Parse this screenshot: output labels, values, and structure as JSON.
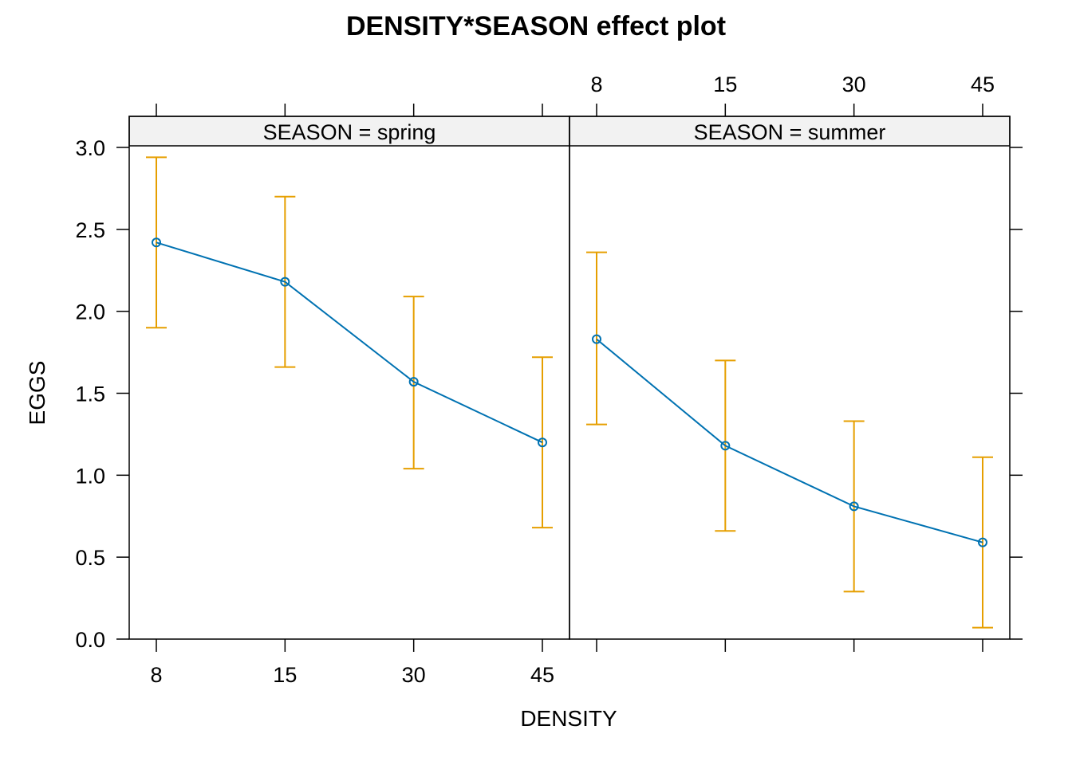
{
  "chart_data": {
    "type": "line",
    "title": "DENSITY*SEASON effect plot",
    "xlabel": "DENSITY",
    "ylabel": "EGGS",
    "categories": [
      "8",
      "15",
      "30",
      "45"
    ],
    "yticks": [
      "0.0",
      "0.5",
      "1.0",
      "1.5",
      "2.0",
      "2.5",
      "3.0"
    ],
    "ylim": [
      0,
      3.2
    ],
    "grid": false,
    "line_color": "#0072B2",
    "errorbar_color": "#E69F00",
    "panels": [
      {
        "strip": "SEASON = spring",
        "values": [
          2.42,
          2.18,
          1.57,
          1.2
        ],
        "lower": [
          1.9,
          1.66,
          1.04,
          0.68
        ],
        "upper": [
          2.94,
          2.7,
          2.09,
          1.72
        ]
      },
      {
        "strip": "SEASON = summer",
        "values": [
          1.83,
          1.18,
          0.81,
          0.59
        ],
        "lower": [
          1.31,
          0.66,
          0.29,
          0.07
        ],
        "upper": [
          2.36,
          1.7,
          1.33,
          1.11
        ]
      }
    ]
  }
}
